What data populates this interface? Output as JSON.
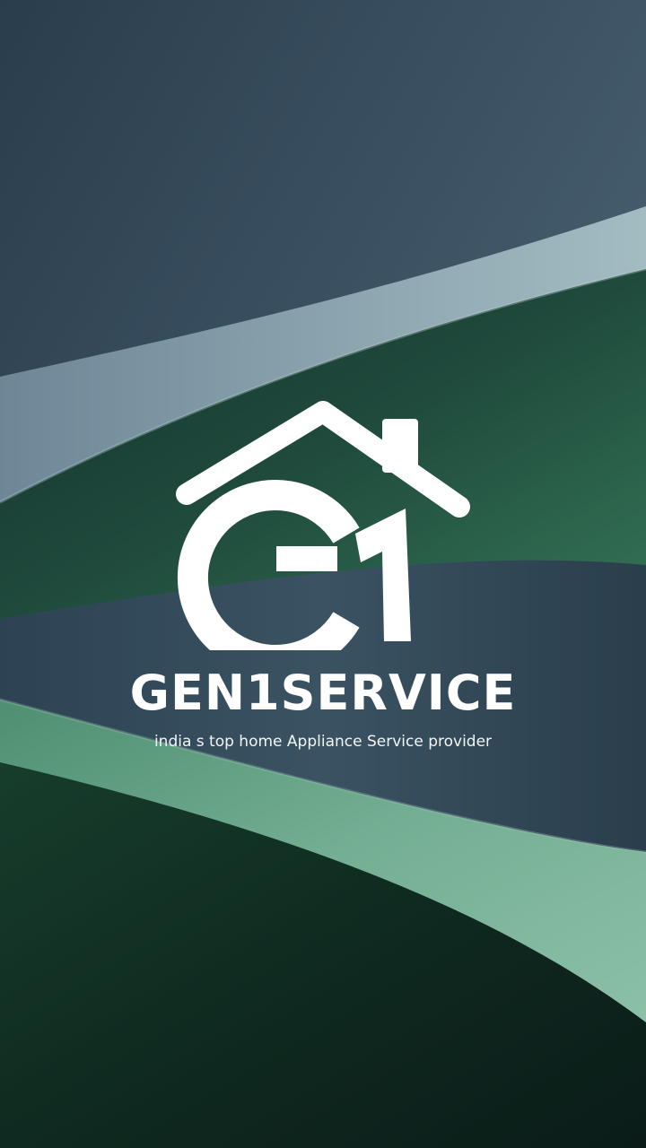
{
  "splash": {
    "brand_name": "GEN1SERVICE",
    "tagline": "india s top home Appliance Service provider",
    "logo_icon": "house-g1-logo-icon",
    "colors": {
      "logo": "#ffffff",
      "bg_slate": "#3f5a6b",
      "bg_green": "#2f6b4f",
      "bg_mint": "#7fb59e",
      "bg_dark": "#0d1f1a"
    }
  }
}
